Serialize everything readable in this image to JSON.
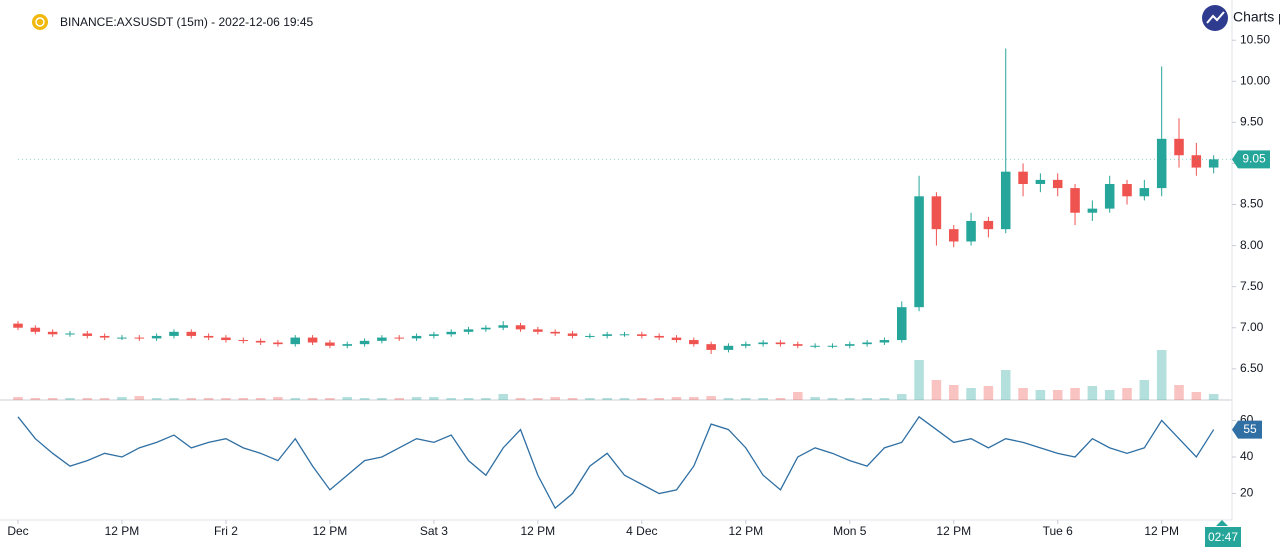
{
  "title": "BINANCE:AXSUSDT (15m) - 2022-12-06 19:45",
  "brand": "Charts p",
  "countdown": "02:47",
  "chart_data": [
    {
      "type": "candlestick",
      "x": [
        0,
        2,
        4,
        6,
        8,
        10,
        12,
        14,
        16,
        18,
        20,
        22,
        24,
        26,
        28,
        30,
        32,
        34,
        36,
        38,
        40,
        42,
        44,
        46,
        48,
        50,
        52,
        54,
        56,
        58,
        60,
        62,
        64,
        66,
        68,
        70,
        72,
        74,
        76,
        78,
        80,
        82,
        84,
        86,
        88,
        90,
        92,
        94,
        96,
        98,
        100,
        102,
        104,
        106,
        108,
        110,
        112,
        114,
        116,
        118,
        120,
        122,
        124,
        126,
        128,
        130,
        132,
        134,
        136,
        138
      ],
      "open": [
        7.05,
        7.0,
        6.95,
        6.92,
        6.93,
        6.9,
        6.88,
        6.88,
        6.87,
        6.9,
        6.95,
        6.9,
        6.88,
        6.85,
        6.84,
        6.82,
        6.8,
        6.88,
        6.82,
        6.78,
        6.8,
        6.84,
        6.88,
        6.87,
        6.9,
        6.92,
        6.95,
        6.98,
        7.0,
        7.03,
        6.98,
        6.95,
        6.93,
        6.9,
        6.9,
        6.92,
        6.92,
        6.9,
        6.88,
        6.85,
        6.8,
        6.73,
        6.78,
        6.8,
        6.82,
        6.8,
        6.78,
        6.78,
        6.78,
        6.8,
        6.82,
        6.85,
        7.25,
        8.6,
        8.2,
        8.05,
        8.3,
        8.2,
        8.9,
        8.75,
        8.8,
        8.7,
        8.4,
        8.45,
        8.75,
        8.6,
        8.7,
        9.3,
        9.1,
        8.95
      ],
      "high": [
        7.08,
        7.03,
        6.98,
        6.96,
        6.96,
        6.93,
        6.91,
        6.91,
        6.93,
        6.98,
        6.98,
        6.93,
        6.91,
        6.88,
        6.87,
        6.85,
        6.91,
        6.91,
        6.85,
        6.83,
        6.87,
        6.91,
        6.91,
        6.93,
        6.95,
        6.98,
        7.01,
        7.03,
        7.08,
        7.06,
        7.01,
        6.98,
        6.96,
        6.93,
        6.95,
        6.95,
        6.95,
        6.93,
        6.91,
        6.88,
        6.83,
        6.81,
        6.83,
        6.85,
        6.85,
        6.83,
        6.81,
        6.81,
        6.83,
        6.85,
        6.88,
        7.32,
        8.85,
        8.65,
        8.25,
        8.4,
        8.35,
        10.4,
        9.0,
        8.88,
        8.88,
        8.75,
        8.55,
        8.85,
        8.8,
        8.8,
        10.18,
        9.55,
        9.25,
        9.1
      ],
      "low": [
        6.97,
        6.92,
        6.89,
        6.89,
        6.87,
        6.85,
        6.85,
        6.84,
        6.84,
        6.87,
        6.87,
        6.85,
        6.82,
        6.81,
        6.79,
        6.77,
        6.77,
        6.79,
        6.75,
        6.75,
        6.77,
        6.81,
        6.84,
        6.84,
        6.87,
        6.89,
        6.92,
        6.95,
        6.97,
        6.95,
        6.92,
        6.9,
        6.87,
        6.87,
        6.87,
        6.89,
        6.87,
        6.85,
        6.82,
        6.77,
        6.68,
        6.7,
        6.75,
        6.77,
        6.77,
        6.75,
        6.75,
        6.75,
        6.75,
        6.77,
        6.79,
        6.82,
        7.2,
        8.0,
        7.98,
        8.0,
        8.1,
        8.15,
        8.6,
        8.65,
        8.6,
        8.25,
        8.3,
        8.4,
        8.5,
        8.55,
        8.6,
        8.95,
        8.85,
        8.88
      ],
      "close": [
        7.0,
        6.95,
        6.92,
        6.93,
        6.9,
        6.88,
        6.88,
        6.87,
        6.9,
        6.95,
        6.9,
        6.88,
        6.85,
        6.84,
        6.82,
        6.8,
        6.88,
        6.82,
        6.78,
        6.8,
        6.84,
        6.88,
        6.87,
        6.9,
        6.92,
        6.95,
        6.98,
        7.0,
        7.03,
        6.98,
        6.95,
        6.93,
        6.9,
        6.9,
        6.92,
        6.92,
        6.9,
        6.88,
        6.85,
        6.8,
        6.73,
        6.78,
        6.8,
        6.82,
        6.8,
        6.78,
        6.78,
        6.78,
        6.8,
        6.82,
        6.85,
        7.25,
        8.6,
        8.2,
        8.05,
        8.3,
        8.2,
        8.9,
        8.75,
        8.8,
        8.7,
        8.4,
        8.45,
        8.75,
        8.6,
        8.7,
        9.3,
        9.1,
        8.95,
        9.05
      ],
      "volume": [
        3,
        2,
        2,
        2,
        2,
        2,
        3,
        4,
        2,
        2,
        2,
        2,
        2,
        2,
        2,
        3,
        2,
        2,
        2,
        3,
        2,
        2,
        2,
        3,
        3,
        2,
        2,
        2,
        6,
        2,
        2,
        3,
        2,
        2,
        2,
        2,
        2,
        2,
        3,
        3,
        4,
        2,
        2,
        2,
        2,
        8,
        3,
        2,
        2,
        2,
        2,
        6,
        40,
        20,
        15,
        12,
        14,
        30,
        12,
        10,
        10,
        12,
        14,
        10,
        12,
        20,
        50,
        15,
        8,
        6
      ],
      "up_color": "#26a69a",
      "down_color": "#ef5350",
      "xlim": [
        0,
        140
      ],
      "xticks": [
        {
          "value": 0,
          "label": "Dec"
        },
        {
          "value": 12,
          "label": "12 PM"
        },
        {
          "value": 24,
          "label": "Fri 2"
        },
        {
          "value": 36,
          "label": "12 PM"
        },
        {
          "value": 48,
          "label": "Sat 3"
        },
        {
          "value": 60,
          "label": "12 PM"
        },
        {
          "value": 72,
          "label": "4 Dec"
        },
        {
          "value": 84,
          "label": "12 PM"
        },
        {
          "value": 96,
          "label": "Mon 5"
        },
        {
          "value": 108,
          "label": "12 PM"
        },
        {
          "value": 120,
          "label": "Tue 6"
        },
        {
          "value": 132,
          "label": "12 PM"
        }
      ],
      "ylim": [
        6.12,
        10.99
      ],
      "yticks": [
        {
          "value": 6.5,
          "label": "6.50"
        },
        {
          "value": 7,
          "label": "7.00"
        },
        {
          "value": 7.5,
          "label": "7.50"
        },
        {
          "value": 8,
          "label": "8.00"
        },
        {
          "value": 8.5,
          "label": "8.50"
        },
        {
          "value": 9,
          "label": "9.00"
        },
        {
          "value": 9.5,
          "label": "9.50"
        },
        {
          "value": 10,
          "label": "10.00"
        },
        {
          "value": 10.5,
          "label": "10.50"
        }
      ],
      "y2lim": [
        0,
        400
      ],
      "grid": false
    },
    {
      "type": "line",
      "x": [
        0,
        2,
        4,
        6,
        8,
        10,
        12,
        14,
        16,
        18,
        20,
        22,
        24,
        26,
        28,
        30,
        32,
        34,
        36,
        38,
        40,
        42,
        44,
        46,
        48,
        50,
        52,
        54,
        56,
        58,
        60,
        62,
        64,
        66,
        68,
        70,
        72,
        74,
        76,
        78,
        80,
        82,
        84,
        86,
        88,
        90,
        92,
        94,
        96,
        98,
        100,
        102,
        104,
        106,
        108,
        110,
        112,
        114,
        116,
        118,
        120,
        122,
        124,
        126,
        128,
        130,
        132,
        134,
        136,
        138
      ],
      "values": [
        62,
        50,
        42,
        35,
        38,
        42,
        40,
        45,
        48,
        52,
        45,
        48,
        50,
        45,
        42,
        38,
        50,
        35,
        22,
        30,
        38,
        40,
        45,
        50,
        48,
        52,
        38,
        30,
        45,
        55,
        30,
        12,
        20,
        35,
        42,
        30,
        25,
        20,
        22,
        35,
        58,
        55,
        45,
        30,
        22,
        40,
        45,
        42,
        38,
        35,
        45,
        48,
        62,
        55,
        48,
        50,
        45,
        50,
        48,
        45,
        42,
        40,
        50,
        45,
        42,
        45,
        60,
        50,
        40,
        55
      ],
      "color": "#2f6fa3",
      "xlim": [
        0,
        140
      ],
      "ylim": [
        5.5,
        70.1
      ],
      "yticks": [
        20,
        40,
        60
      ],
      "grid": false
    }
  ]
}
